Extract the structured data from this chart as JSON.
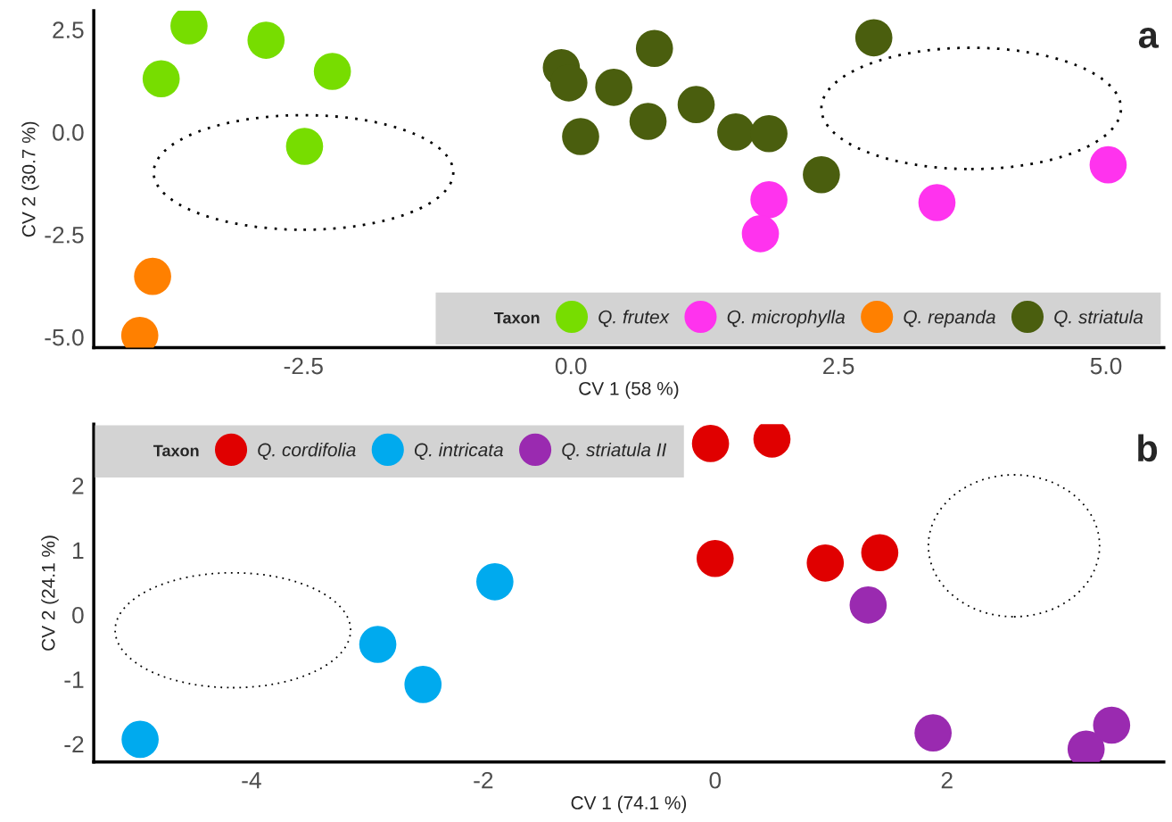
{
  "chart_data": [
    {
      "type": "scatter",
      "xlabel": "CV 1 (58 %)",
      "ylabel": "CV 2 (30.7 %)",
      "legend_title": "Taxon",
      "legend": "bottom right",
      "grid": false,
      "marker": "circle",
      "xlim": [
        -4.46,
        5.54
      ],
      "xticks": [
        -2.5,
        {
          "value": 0,
          "label": "0.0"
        },
        2.5,
        {
          "value": 5,
          "label": "5.0"
        }
      ],
      "ylim": [
        -5.26,
        2.96
      ],
      "yticks": [
        {
          "value": -5,
          "label": "-5.0"
        },
        -2.5,
        {
          "value": 0,
          "label": "0.0"
        },
        2.5
      ],
      "annotations": [
        "a"
      ],
      "series": [
        {
          "name": "Q. frutex",
          "color": "#77dd00",
          "x": [
            -3.57,
            -2.85,
            -3.83,
            -2.23,
            -2.49
          ],
          "values": [
            2.59,
            2.24,
            1.3,
            1.48,
            -0.35
          ]
        },
        {
          "name": "Q. microphylla",
          "color": "#ff33ee",
          "x": [
            1.85,
            1.77,
            3.42,
            5.02
          ],
          "values": [
            -1.65,
            -2.48,
            -1.72,
            -0.8
          ]
        },
        {
          "name": "Q. repanda",
          "color": "#ff8000",
          "x": [
            -3.91,
            -4.03
          ],
          "values": [
            -3.52,
            -4.96
          ]
        },
        {
          "name": "Q. striatula",
          "color": "#4a5e0e",
          "x": [
            -0.09,
            -0.02,
            0.09,
            0.4,
            0.78,
            0.72,
            1.17,
            1.54,
            1.85,
            2.34,
            2.83
          ],
          "values": [
            1.57,
            1.2,
            -0.11,
            1.09,
            2.04,
            0.26,
            0.67,
            0.0,
            -0.04,
            -1.04,
            2.3
          ]
        }
      ]
    },
    {
      "type": "scatter",
      "xlabel": "CV 1 (74.1 %)",
      "ylabel": "CV 2 (24.1 %)",
      "legend_title": "Taxon",
      "legend": "top left",
      "grid": false,
      "marker": "circle",
      "xlim": [
        -5.36,
        3.87
      ],
      "xticks": [
        -4,
        -2,
        0,
        2
      ],
      "ylim": [
        -2.28,
        2.95
      ],
      "yticks": [
        -2,
        -1,
        0,
        1,
        2
      ],
      "annotations": [
        "b"
      ],
      "series": [
        {
          "name": "Q. cordifolia",
          "color": "#e00000",
          "x": [
            -0.04,
            0.49,
            0.0,
            0.95,
            1.42
          ],
          "values": [
            2.65,
            2.72,
            0.87,
            0.8,
            0.96
          ]
        },
        {
          "name": "Q. intricata",
          "color": "#00aaee",
          "x": [
            -4.96,
            -2.91,
            -2.52,
            -1.9
          ],
          "values": [
            -1.93,
            -0.46,
            -1.08,
            0.51
          ]
        },
        {
          "name": "Q. striatula II",
          "color": "#9a2ab0",
          "x": [
            1.32,
            1.88,
            3.2,
            3.42
          ],
          "values": [
            0.15,
            -1.83,
            -2.08,
            -1.71
          ]
        }
      ]
    }
  ]
}
